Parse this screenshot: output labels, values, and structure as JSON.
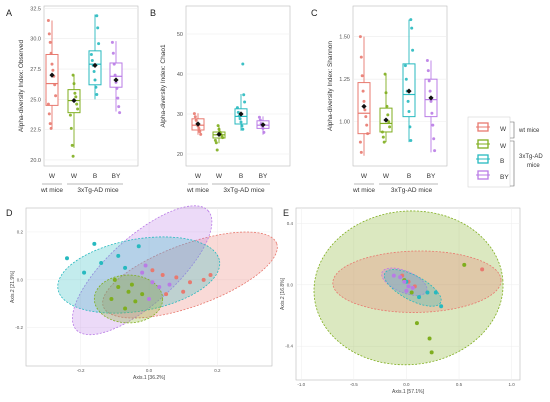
{
  "colors": {
    "wt_W": "#e8796f",
    "tg_W": "#7fae1e",
    "B": "#27b9bf",
    "BY": "#b97be6"
  },
  "panels": {
    "A": {
      "letter": "A"
    },
    "B": {
      "letter": "B"
    },
    "C": {
      "letter": "C"
    },
    "D": {
      "letter": "D"
    },
    "E": {
      "letter": "E"
    }
  },
  "boxplot_groups": {
    "labels": [
      "W",
      "W",
      "B",
      "BY"
    ],
    "wt_label": "wt mice",
    "tg_label": "3xTg-AD  mice"
  },
  "legend": {
    "items": [
      "W",
      "W",
      "B",
      "BY"
    ],
    "wt_group_label": "wt mice",
    "tg_group_label": "3xTg-AD mice"
  },
  "chart_data": [
    {
      "panel": "A",
      "type": "box",
      "ylabel": "Alpha-diversity Index: Observed",
      "ylim": [
        19.5,
        32.7
      ],
      "yticks": [
        "20.0",
        "22.5",
        "25.0",
        "27.5",
        "30.0",
        "32.5"
      ],
      "ytick_values": [
        20.0,
        22.5,
        25.0,
        27.5,
        30.0,
        32.5
      ],
      "groups": [
        {
          "name": "W (wt mice)",
          "q1": 24.5,
          "median": 26.3,
          "q3": 28.7,
          "whisker_low": 22.6,
          "whisker_high": 31.5,
          "mean": 27.0,
          "points": [
            31.5,
            30.4,
            29.7,
            28.8,
            27.9,
            27.4,
            26.9,
            26.2,
            25.3,
            24.6,
            23.8,
            23.0,
            22.6
          ]
        },
        {
          "name": "W (3xTg-AD)",
          "q1": 23.9,
          "median": 24.9,
          "q3": 25.8,
          "whisker_low": 21.0,
          "whisker_high": 27.0,
          "mean": 24.9,
          "points": [
            27.0,
            26.3,
            25.5,
            25.2,
            24.6,
            24.2,
            23.7,
            22.6,
            21.2,
            20.3
          ]
        },
        {
          "name": "B (3xTg-AD)",
          "q1": 26.2,
          "median": 27.9,
          "q3": 29.0,
          "whisker_low": 25.0,
          "whisker_high": 32.0,
          "mean": 27.8,
          "points": [
            31.9,
            30.9,
            29.6,
            28.7,
            28.2,
            27.8,
            27.3,
            26.6,
            26.0,
            25.4
          ]
        },
        {
          "name": "BY (3xTg-AD)",
          "q1": 26.0,
          "median": 26.9,
          "q3": 28.0,
          "whisker_low": 24.0,
          "whisker_high": 29.8,
          "mean": 26.6,
          "points": [
            29.7,
            28.8,
            27.9,
            27.0,
            26.4,
            25.9,
            25.1,
            24.4,
            23.9
          ]
        }
      ]
    },
    {
      "panel": "B",
      "type": "box",
      "ylabel": "Alpha-diversity Index: Chao1",
      "ylim": [
        17,
        57
      ],
      "yticks": [
        "20",
        "30",
        "40",
        "50"
      ],
      "ytick_values": [
        20,
        30,
        40,
        50
      ],
      "groups": [
        {
          "name": "W (wt mice)",
          "q1": 26.0,
          "median": 27.2,
          "q3": 28.8,
          "whisker_low": 24.8,
          "whisker_high": 30.2,
          "mean": 27.5,
          "points": [
            30.1,
            29.3,
            28.4,
            27.6,
            27.0,
            26.4,
            25.6,
            24.9
          ]
        },
        {
          "name": "W (3xTg-AD)",
          "q1": 24.0,
          "median": 24.8,
          "q3": 25.5,
          "whisker_low": 22.7,
          "whisker_high": 27.2,
          "mean": 24.9,
          "points": [
            27.1,
            26.2,
            25.5,
            25.0,
            24.6,
            24.1,
            23.4,
            22.8,
            21.0
          ]
        },
        {
          "name": "B (3xTg-AD)",
          "q1": 27.5,
          "median": 29.4,
          "q3": 31.3,
          "whisker_low": 25.8,
          "whisker_high": 35.0,
          "mean": 30.0,
          "points": [
            42.5,
            34.8,
            33.0,
            31.6,
            30.4,
            29.5,
            28.8,
            28.0,
            27.0,
            26.2
          ]
        },
        {
          "name": "BY (3xTg-AD)",
          "q1": 26.4,
          "median": 27.2,
          "q3": 28.3,
          "whisker_low": 24.8,
          "whisker_high": 29.4,
          "mean": 27.3,
          "points": [
            29.2,
            28.5,
            27.6,
            27.0,
            26.4,
            25.4
          ]
        }
      ]
    },
    {
      "panel": "C",
      "type": "box",
      "ylabel": "Alpha-diversity Index: Shannon",
      "ylim": [
        0.74,
        1.68
      ],
      "yticks": [
        "1.00",
        "1.25",
        "1.50"
      ],
      "ytick_values": [
        1.0,
        1.25,
        1.5
      ],
      "groups": [
        {
          "name": "W (wt mice)",
          "q1": 0.93,
          "median": 1.05,
          "q3": 1.23,
          "whisker_low": 0.8,
          "whisker_high": 1.5,
          "mean": 1.09,
          "points": [
            1.5,
            1.38,
            1.27,
            1.18,
            1.12,
            1.07,
            1.03,
            0.98,
            0.93,
            0.88,
            0.82
          ]
        },
        {
          "name": "W (3xTg-AD)",
          "q1": 0.94,
          "median": 0.99,
          "q3": 1.08,
          "whisker_low": 0.88,
          "whisker_high": 1.28,
          "mean": 1.01,
          "points": [
            1.28,
            1.17,
            1.09,
            1.04,
            1.0,
            0.97,
            0.94,
            0.91,
            0.88
          ]
        },
        {
          "name": "B (3xTg-AD)",
          "q1": 1.03,
          "median": 1.16,
          "q3": 1.34,
          "whisker_low": 0.88,
          "whisker_high": 1.6,
          "mean": 1.18,
          "points": [
            1.6,
            1.55,
            1.42,
            1.33,
            1.25,
            1.18,
            1.12,
            1.06,
            0.97,
            0.89
          ]
        },
        {
          "name": "BY (3xTg-AD)",
          "q1": 1.03,
          "median": 1.13,
          "q3": 1.25,
          "whisker_low": 0.82,
          "whisker_high": 1.36,
          "mean": 1.14,
          "points": [
            1.36,
            1.3,
            1.24,
            1.18,
            1.12,
            1.05,
            0.98,
            0.9,
            0.83
          ]
        }
      ]
    },
    {
      "panel": "D",
      "type": "scatter",
      "xlabel": "Axis.1   [36.2%]",
      "ylabel": "Axis.2   [21.9%]",
      "xlim": [
        -0.36,
        0.36
      ],
      "ylim": [
        -0.36,
        0.3
      ],
      "xticks": [
        "-0.2",
        "0.0",
        "0.2"
      ],
      "xtick_values": [
        -0.2,
        0.0,
        0.2
      ],
      "yticks": [
        "0.2",
        "0.0",
        "-0.2"
      ],
      "ytick_values": [
        0.2,
        0.0,
        -0.2
      ],
      "ellipses": [
        {
          "group": "wt_W",
          "cx": 0.12,
          "cy": 0.02,
          "rx": 0.27,
          "ry": 0.13,
          "angle": -20
        },
        {
          "group": "BY",
          "cx": -0.02,
          "cy": 0.04,
          "rx": 0.26,
          "ry": 0.14,
          "angle": -42
        },
        {
          "group": "B",
          "cx": -0.03,
          "cy": 0.02,
          "rx": 0.24,
          "ry": 0.15,
          "angle": -10
        },
        {
          "group": "tg_W",
          "cx": -0.06,
          "cy": -0.08,
          "rx": 0.1,
          "ry": 0.1,
          "angle": 0
        }
      ],
      "points": [
        {
          "group": "wt_W",
          "x": 0.04,
          "y": 0.02
        },
        {
          "group": "wt_W",
          "x": 0.08,
          "y": 0.01
        },
        {
          "group": "wt_W",
          "x": 0.12,
          "y": -0.01
        },
        {
          "group": "wt_W",
          "x": 0.16,
          "y": 0.0
        },
        {
          "group": "wt_W",
          "x": 0.1,
          "y": -0.05
        },
        {
          "group": "wt_W",
          "x": 0.05,
          "y": -0.06
        },
        {
          "group": "wt_W",
          "x": 0.18,
          "y": 0.02
        },
        {
          "group": "wt_W",
          "x": 0.01,
          "y": 0.04
        },
        {
          "group": "tg_W",
          "x": -0.09,
          "y": -0.03
        },
        {
          "group": "tg_W",
          "x": -0.06,
          "y": -0.05
        },
        {
          "group": "tg_W",
          "x": -0.04,
          "y": -0.09
        },
        {
          "group": "tg_W",
          "x": -0.07,
          "y": -0.12
        },
        {
          "group": "tg_W",
          "x": -0.02,
          "y": -0.06
        },
        {
          "group": "tg_W",
          "x": -0.1,
          "y": 0.0
        },
        {
          "group": "tg_W",
          "x": -0.05,
          "y": -0.02
        },
        {
          "group": "tg_W",
          "x": -0.11,
          "y": -0.08
        },
        {
          "group": "B",
          "x": -0.24,
          "y": 0.09
        },
        {
          "group": "B",
          "x": -0.16,
          "y": 0.15
        },
        {
          "group": "B",
          "x": -0.14,
          "y": 0.07
        },
        {
          "group": "B",
          "x": -0.19,
          "y": 0.03
        },
        {
          "group": "B",
          "x": -0.09,
          "y": 0.1
        },
        {
          "group": "B",
          "x": -0.07,
          "y": 0.05
        },
        {
          "group": "B",
          "x": -0.03,
          "y": 0.14
        },
        {
          "group": "BY",
          "x": -0.02,
          "y": 0.03
        },
        {
          "group": "BY",
          "x": 0.01,
          "y": -0.01
        },
        {
          "group": "BY",
          "x": 0.03,
          "y": -0.03
        },
        {
          "group": "BY",
          "x": -0.01,
          "y": 0.06
        },
        {
          "group": "BY",
          "x": 0.06,
          "y": -0.02
        },
        {
          "group": "BY",
          "x": 0.0,
          "y": -0.08
        }
      ]
    },
    {
      "panel": "E",
      "type": "scatter",
      "xlabel": "Axis.1   [57.1%]",
      "ylabel": "Axis.2   [16.8%]",
      "xlim": [
        -1.05,
        1.08
      ],
      "ylim": [
        -0.62,
        0.5
      ],
      "xticks": [
        "-1.0",
        "-0.5",
        "0.0",
        "0.5",
        "1.0"
      ],
      "xtick_values": [
        -1.0,
        -0.5,
        0.0,
        0.5,
        1.0
      ],
      "yticks": [
        "0.4",
        "0.0",
        "-0.4"
      ],
      "ytick_values": [
        0.4,
        0.0,
        -0.4
      ],
      "ellipses": [
        {
          "group": "tg_W",
          "cx": 0.02,
          "cy": -0.02,
          "rx": 0.9,
          "ry": 0.5,
          "angle": -5
        },
        {
          "group": "wt_W",
          "cx": 0.1,
          "cy": 0.02,
          "rx": 0.8,
          "ry": 0.2,
          "angle": -1
        },
        {
          "group": "BY",
          "cx": -0.02,
          "cy": 0.02,
          "rx": 0.23,
          "ry": 0.07,
          "angle": 23
        },
        {
          "group": "B",
          "cx": 0.06,
          "cy": -0.02,
          "rx": 0.3,
          "ry": 0.08,
          "angle": 28
        }
      ],
      "points": [
        {
          "group": "wt_W",
          "x": 0.72,
          "y": 0.1
        },
        {
          "group": "wt_W",
          "x": 0.02,
          "y": 0.02
        },
        {
          "group": "wt_W",
          "x": -0.04,
          "y": 0.06
        },
        {
          "group": "wt_W",
          "x": 0.08,
          "y": -0.01
        },
        {
          "group": "tg_W",
          "x": 0.55,
          "y": 0.13
        },
        {
          "group": "tg_W",
          "x": 0.1,
          "y": -0.25
        },
        {
          "group": "tg_W",
          "x": 0.22,
          "y": -0.35
        },
        {
          "group": "tg_W",
          "x": 0.24,
          "y": -0.44
        },
        {
          "group": "tg_W",
          "x": -0.02,
          "y": 0.03
        },
        {
          "group": "tg_W",
          "x": 0.05,
          "y": -0.05
        },
        {
          "group": "B",
          "x": 0.2,
          "y": -0.05
        },
        {
          "group": "B",
          "x": 0.28,
          "y": -0.05
        },
        {
          "group": "B",
          "x": 0.12,
          "y": -0.08
        },
        {
          "group": "B",
          "x": 0.33,
          "y": -0.14
        },
        {
          "group": "B",
          "x": 0.0,
          "y": 0.02
        },
        {
          "group": "BY",
          "x": -0.12,
          "y": 0.06
        },
        {
          "group": "BY",
          "x": -0.06,
          "y": 0.05
        },
        {
          "group": "BY",
          "x": -0.02,
          "y": 0.02
        },
        {
          "group": "BY",
          "x": 0.02,
          "y": -0.01
        },
        {
          "group": "BY",
          "x": 0.0,
          "y": -0.04
        },
        {
          "group": "BY",
          "x": 0.06,
          "y": -0.02
        }
      ]
    }
  ]
}
